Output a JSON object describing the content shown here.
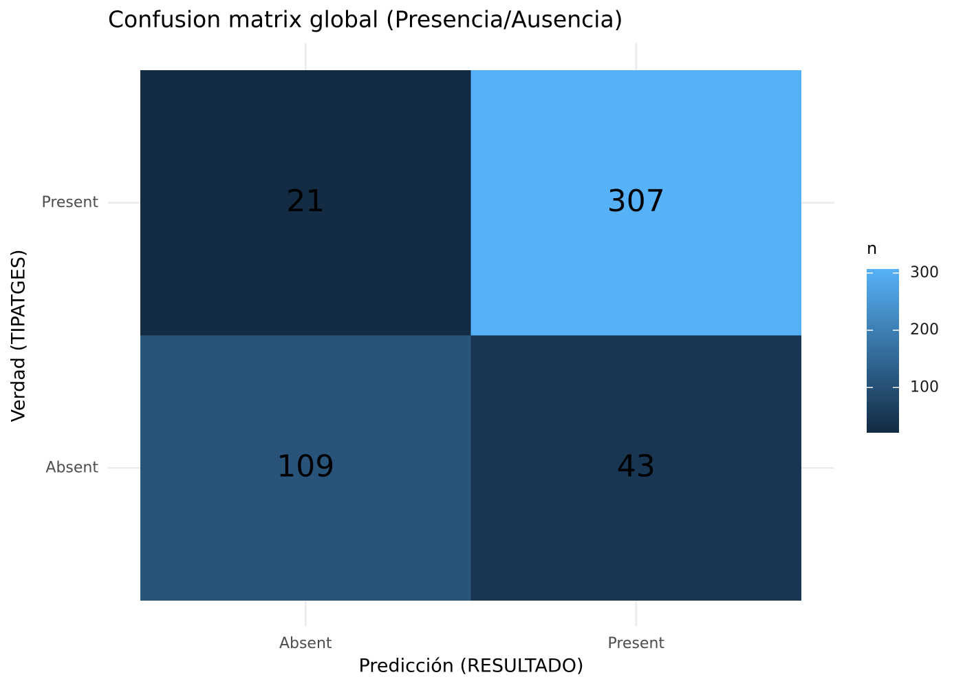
{
  "chart_data": {
    "type": "heatmap",
    "title": "Confusion matrix global (Presencia/Ausencia)",
    "x_label": "Predicción (RESULTADO)",
    "y_label": "Verdad (TIPATGES)",
    "x_categories": [
      "Absent",
      "Present"
    ],
    "y_categories": [
      "Absent",
      "Present"
    ],
    "values": [
      [
        109,
        43
      ],
      [
        21,
        307
      ]
    ],
    "legend_title": "n",
    "color_lim": [
      21,
      307
    ],
    "color_ticks": [
      100,
      200,
      300
    ],
    "low_color": "#132B43",
    "high_color": "#56B1F7",
    "grid": true
  }
}
